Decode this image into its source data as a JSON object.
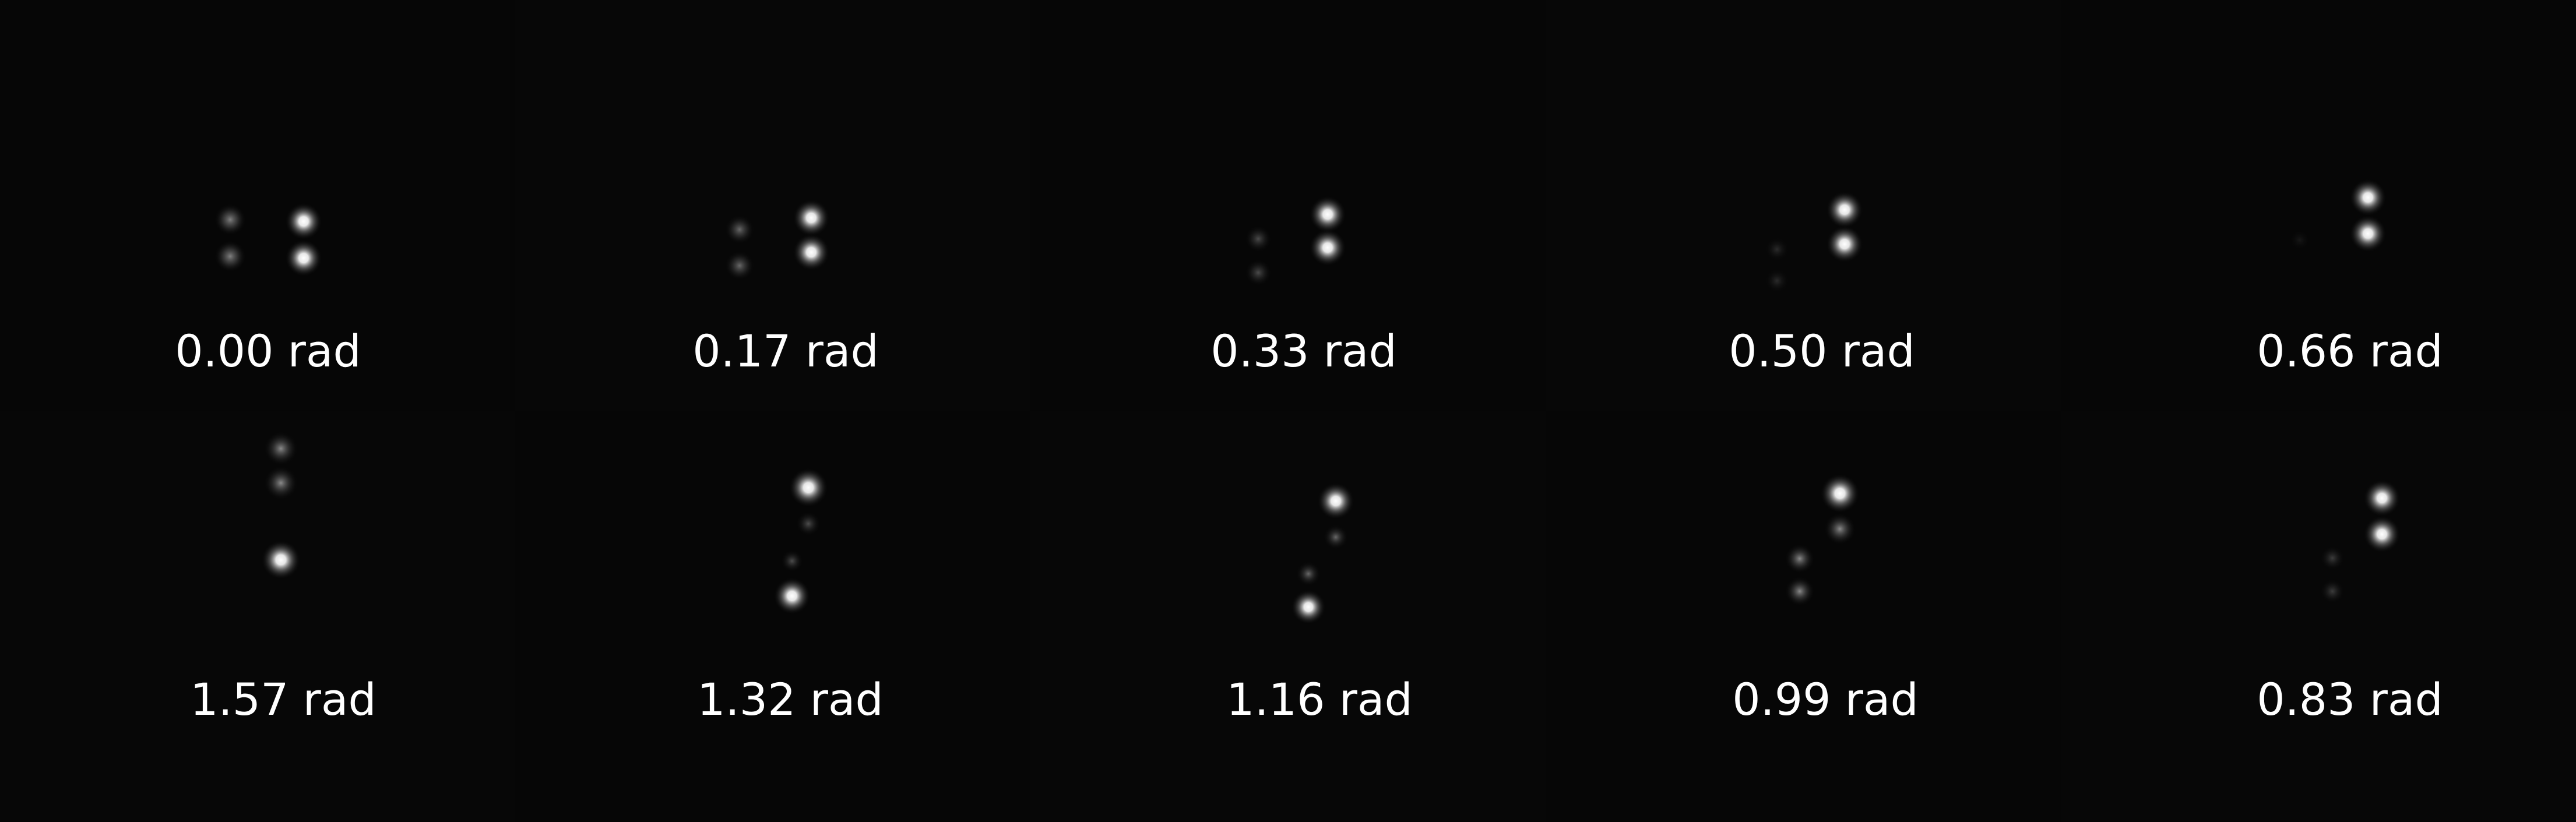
{
  "panels": [
    {
      "row": 0,
      "col": 0,
      "label": "0.00 rad"
    },
    {
      "row": 0,
      "col": 1,
      "label": "0.17 rad"
    },
    {
      "row": 0,
      "col": 2,
      "label": "0.33 rad"
    },
    {
      "row": 0,
      "col": 3,
      "label": "0.50 rad"
    },
    {
      "row": 0,
      "col": 4,
      "label": "0.66 rad"
    },
    {
      "row": 1,
      "col": 0,
      "label": "1.57 rad"
    },
    {
      "row": 1,
      "col": 1,
      "label": "1.32 rad"
    },
    {
      "row": 1,
      "col": 2,
      "label": "1.16 rad"
    },
    {
      "row": 1,
      "col": 3,
      "label": "0.99 rad"
    },
    {
      "row": 1,
      "col": 4,
      "label": "0.83 rad"
    }
  ]
}
